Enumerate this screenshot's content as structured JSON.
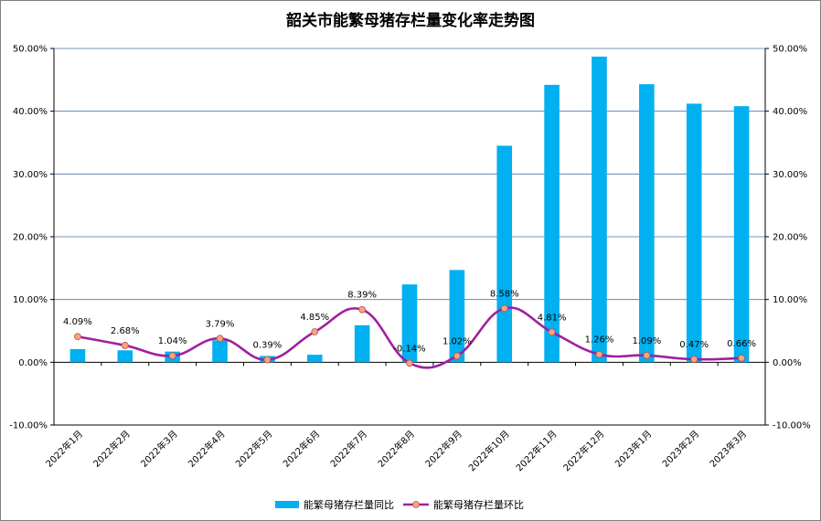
{
  "chart_data": {
    "type": "bar",
    "title": "韶关市能繁母猪存栏量变化率走势图",
    "categories": [
      "2022年1月",
      "2022年2月",
      "2022年3月",
      "2022年4月",
      "2022年5月",
      "2022年6月",
      "2022年7月",
      "2022年8月",
      "2022年9月",
      "2022年10月",
      "2022年11月",
      "2022年12月",
      "2023年1月",
      "2023年2月",
      "2023年3月"
    ],
    "series": [
      {
        "name": "能繁母猪存栏量同比",
        "kind": "bar",
        "axis": "left",
        "color": "#00b0f0",
        "values": [
          2.1,
          1.9,
          1.7,
          3.5,
          1.0,
          1.2,
          5.9,
          12.4,
          14.7,
          34.5,
          44.2,
          48.7,
          44.3,
          41.2,
          40.8
        ]
      },
      {
        "name": "能繁母猪存栏量环比",
        "kind": "line",
        "axis": "right",
        "color": "#a0209f",
        "marker_color": "#f4a582",
        "values": [
          4.09,
          2.68,
          1.04,
          3.79,
          0.39,
          4.85,
          8.39,
          -0.14,
          1.02,
          8.58,
          4.81,
          1.26,
          1.09,
          0.47,
          0.66
        ],
        "labels": [
          "4.09%",
          "2.68%",
          "1.04%",
          "3.79%",
          "0.39%",
          "4.85%",
          "8.39%",
          "-0.14%",
          "1.02%",
          "8.58%",
          "4.81%",
          "1.26%",
          "1.09%",
          "0.47%",
          "0.66%"
        ]
      }
    ],
    "ylim": [
      -10,
      50
    ],
    "y2lim": [
      -10,
      50
    ],
    "yticks": [
      "-10.00%",
      "0.00%",
      "10.00%",
      "20.00%",
      "30.00%",
      "40.00%",
      "50.00%"
    ],
    "y2ticks": [
      "-10.00%",
      "0.00%",
      "10.00%",
      "20.00%",
      "30.00%",
      "40.00%",
      "50.00%"
    ],
    "grid": true,
    "legend_position": "bottom"
  }
}
